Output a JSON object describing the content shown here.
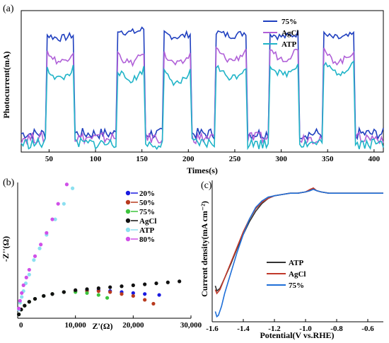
{
  "chart_data": [
    {
      "panel": "(a)",
      "type": "line",
      "xlabel": "Times(s)",
      "ylabel": "Photocurrent(mA)",
      "xlim": [
        20,
        410
      ],
      "ylim": [
        0,
        1
      ],
      "xticks": [
        "50",
        "100",
        "150",
        "200",
        "250",
        "300",
        "350",
        "400"
      ],
      "legend_position": "top-right",
      "on_intervals": [
        [
          47,
          77
        ],
        [
          123,
          152
        ],
        [
          173,
          203
        ],
        [
          230,
          263
        ],
        [
          287,
          318
        ],
        [
          345,
          378
        ]
      ],
      "series": [
        {
          "name": "75%",
          "color": "#1f3fbf",
          "off_level": 0.13,
          "on_levels": [
            0.83,
            0.87,
            0.84,
            0.85,
            0.84,
            0.83
          ]
        },
        {
          "name": "AgCl",
          "color": "#b060d8",
          "off_level": 0.1,
          "on_levels": [
            0.72,
            0.71,
            0.7,
            0.73,
            0.74,
            0.72
          ]
        },
        {
          "name": "ATP",
          "color": "#20b4c8",
          "off_level": 0.06,
          "on_levels": [
            0.6,
            0.59,
            0.57,
            0.61,
            0.63,
            0.64
          ]
        }
      ]
    },
    {
      "panel": "(b)",
      "type": "scatter",
      "xlabel": "Z'(Ω)",
      "ylabel": "-Z''(Ω)",
      "xlim": [
        0,
        30000
      ],
      "ylim": [
        0,
        14000
      ],
      "xticks": [
        "0",
        "10,000",
        "20,000",
        "30,000"
      ],
      "legend_position": "top-right",
      "series": [
        {
          "name": "20%",
          "color": "#1a1ae0",
          "x": [
            200,
            600,
            1200,
            2000,
            3000,
            4500,
            6000,
            8000,
            10000,
            12000,
            14000,
            16000,
            18000,
            20000,
            22000,
            24500
          ],
          "y": [
            400,
            900,
            1300,
            1700,
            2000,
            2300,
            2500,
            2700,
            2800,
            2900,
            2900,
            2800,
            2700,
            2600,
            2500,
            2400
          ]
        },
        {
          "name": "50%",
          "color": "#b83a1e",
          "x": [
            200,
            600,
            1200,
            2000,
            3000,
            4500,
            6000,
            8000,
            10000,
            12000,
            14000,
            16000,
            18000,
            20000,
            22000,
            23500
          ],
          "y": [
            400,
            900,
            1300,
            1700,
            2000,
            2300,
            2500,
            2700,
            2800,
            2800,
            2800,
            2700,
            2500,
            2300,
            1900,
            1500
          ]
        },
        {
          "name": "75%",
          "color": "#3cc43c",
          "x": [
            200,
            600,
            1200,
            2000,
            3000,
            4500,
            6000,
            8000,
            10000,
            12000,
            14000,
            15500
          ],
          "y": [
            400,
            900,
            1300,
            1700,
            2000,
            2300,
            2500,
            2700,
            2700,
            2600,
            2400,
            2100
          ]
        },
        {
          "name": "AgCl",
          "color": "#111111",
          "x": [
            200,
            600,
            1200,
            2000,
            3000,
            4500,
            6000,
            8000,
            10000,
            12000,
            14000,
            16000,
            18000,
            20000,
            22000,
            24000,
            26000,
            28000
          ],
          "y": [
            400,
            900,
            1300,
            1700,
            2000,
            2300,
            2500,
            2700,
            2900,
            3000,
            3100,
            3200,
            3300,
            3400,
            3500,
            3600,
            3700,
            3800
          ]
        },
        {
          "name": "ATP",
          "color": "#8ce0f0",
          "x": [
            200,
            400,
            700,
            1000,
            1400,
            2000,
            2800,
            3800,
            5000,
            6500,
            8000,
            9500
          ],
          "y": [
            900,
            1600,
            2200,
            2800,
            3600,
            4500,
            6000,
            7200,
            8600,
            10200,
            11800,
            13400
          ]
        },
        {
          "name": "80%",
          "color": "#d050e8",
          "x": [
            200,
            400,
            700,
            1000,
            1500,
            2000,
            3000,
            4000,
            5000,
            6000,
            7000,
            8500
          ],
          "y": [
            1000,
            1800,
            2600,
            3400,
            4200,
            5000,
            6400,
            7600,
            8800,
            10200,
            11800,
            13800
          ]
        }
      ]
    },
    {
      "panel": "(c)",
      "type": "line",
      "xlabel": "Potential(V vs.RHE)",
      "ylabel": "Current density(mA cm⁻²)",
      "xlim": [
        -1.6,
        -0.5
      ],
      "ylim": [
        -1.0,
        0.1
      ],
      "xticks": [
        "-1.6",
        "-1.4",
        "-1.2",
        "-1.0",
        "-0.8",
        "-0.6"
      ],
      "legend_position": "bottom-right",
      "series": [
        {
          "name": "ATP",
          "color": "#333333",
          "x": [
            -1.58,
            -1.57,
            -1.55,
            -1.52,
            -1.48,
            -1.44,
            -1.4,
            -1.36,
            -1.32,
            -1.28,
            -1.24,
            -1.2,
            -1.15,
            -1.1,
            -1.05,
            -1.0,
            -0.97,
            -0.95,
            -0.93,
            -0.9,
            -0.85,
            -0.8,
            -0.7,
            -0.6,
            -0.5
          ],
          "y": [
            -0.72,
            -0.76,
            -0.74,
            -0.66,
            -0.55,
            -0.43,
            -0.32,
            -0.22,
            -0.14,
            -0.08,
            -0.04,
            -0.02,
            -0.01,
            0.0,
            0.0,
            0.01,
            0.02,
            0.04,
            0.02,
            0.01,
            0.0,
            0.0,
            0.0,
            0.0,
            0.0
          ]
        },
        {
          "name": "AgCl",
          "color": "#c0392b",
          "x": [
            -1.58,
            -1.57,
            -1.55,
            -1.52,
            -1.48,
            -1.44,
            -1.4,
            -1.36,
            -1.32,
            -1.28,
            -1.24,
            -1.2,
            -1.15,
            -1.1,
            -1.05,
            -1.0,
            -0.97,
            -0.95,
            -0.93,
            -0.9,
            -0.85,
            -0.8,
            -0.7,
            -0.6,
            -0.5
          ],
          "y": [
            -0.75,
            -0.78,
            -0.75,
            -0.66,
            -0.54,
            -0.42,
            -0.3,
            -0.2,
            -0.12,
            -0.07,
            -0.04,
            -0.02,
            -0.01,
            0.0,
            0.0,
            0.01,
            0.03,
            0.04,
            0.02,
            0.01,
            0.0,
            0.0,
            0.0,
            0.0,
            0.0
          ]
        },
        {
          "name": "75%",
          "color": "#1f6fd8",
          "x": [
            -1.58,
            -1.57,
            -1.56,
            -1.54,
            -1.52,
            -1.48,
            -1.44,
            -1.4,
            -1.36,
            -1.32,
            -1.28,
            -1.24,
            -1.2,
            -1.15,
            -1.1,
            -1.05,
            -1.0,
            -0.97,
            -0.95,
            -0.93,
            -0.9,
            -0.85,
            -0.8,
            -0.7,
            -0.6,
            -0.5
          ],
          "y": [
            -0.92,
            -0.96,
            -0.95,
            -0.88,
            -0.78,
            -0.62,
            -0.46,
            -0.32,
            -0.2,
            -0.11,
            -0.06,
            -0.03,
            -0.02,
            -0.01,
            0.0,
            0.0,
            0.01,
            0.02,
            0.03,
            0.02,
            0.01,
            0.0,
            0.0,
            0.0,
            0.0,
            0.0
          ]
        }
      ]
    }
  ]
}
